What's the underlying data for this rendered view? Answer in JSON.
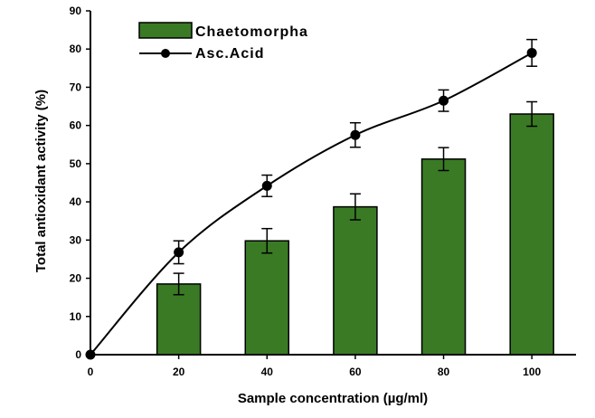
{
  "chart_data": {
    "type": "bar",
    "xlabel": "Sample concentration (µg/ml)",
    "ylabel": "Total antioxidant activity (%)",
    "xlim": [
      0,
      110
    ],
    "ylim": [
      0,
      90
    ],
    "x_ticks": [
      "0",
      "20",
      "40",
      "60",
      "80",
      "100"
    ],
    "y_ticks": [
      "0",
      "10",
      "20",
      "30",
      "40",
      "50",
      "60",
      "70",
      "80",
      "90"
    ],
    "legend_position": "top-left",
    "grid": false,
    "series": [
      {
        "name": "Chaetomorpha",
        "type": "bar",
        "color": "#3a7a25",
        "x": [
          20,
          40,
          60,
          80,
          100
        ],
        "values": [
          18.5,
          29.8,
          38.7,
          51.2,
          63.0
        ],
        "errors": [
          2.8,
          3.2,
          3.4,
          3.0,
          3.2
        ]
      },
      {
        "name": "Asc.Acid",
        "type": "line",
        "color": "#000000",
        "x": [
          0,
          20,
          40,
          60,
          80,
          100
        ],
        "values": [
          0,
          26.8,
          44.2,
          57.5,
          66.5,
          79.0
        ],
        "errors": [
          0,
          3.0,
          2.8,
          3.2,
          2.8,
          3.5
        ]
      }
    ]
  }
}
